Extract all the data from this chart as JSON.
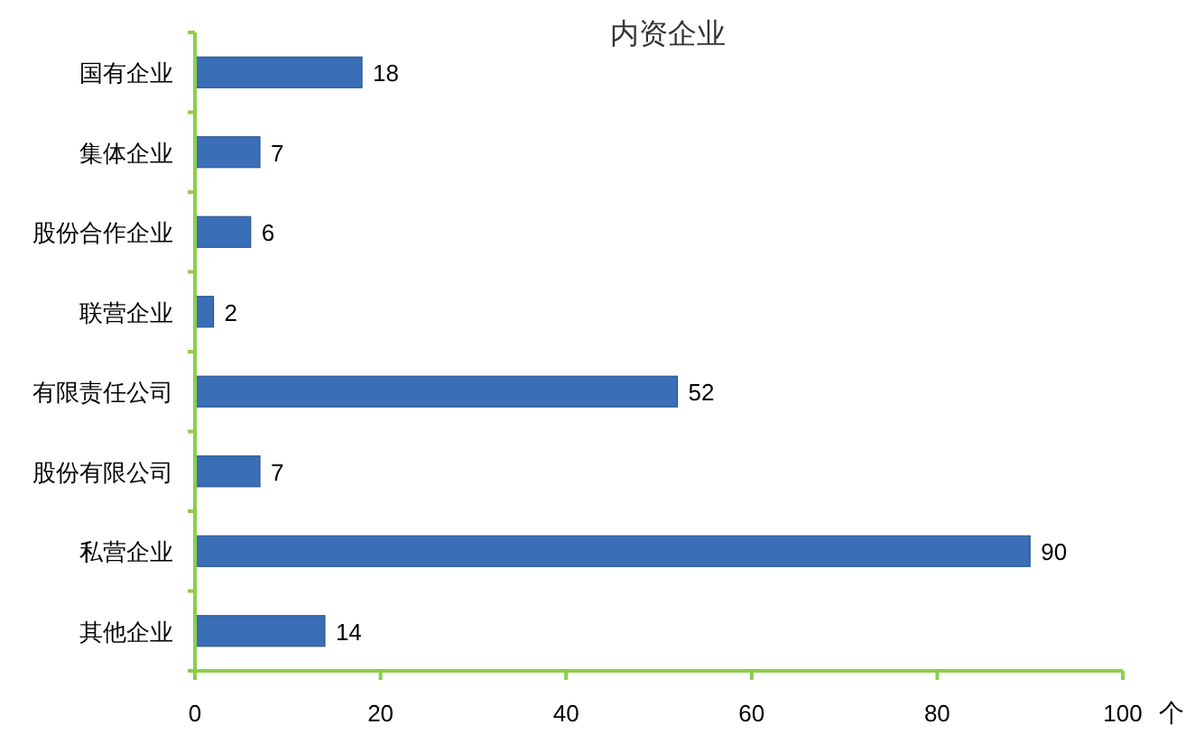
{
  "chart_data": {
    "type": "bar",
    "orientation": "horizontal",
    "title": "内资企业",
    "xlabel": "个",
    "categories": [
      "国有企业",
      "集体企业",
      "股份合作企业",
      "联营企业",
      "有限责任公司",
      "股份有限公司",
      "私营企业",
      "其他企业"
    ],
    "values": [
      18,
      7,
      6,
      2,
      52,
      7,
      90,
      14
    ],
    "color": "#3a6fb8",
    "xlim": [
      0,
      100
    ],
    "xticks": [
      0,
      20,
      40,
      60,
      80,
      100
    ],
    "data_labels": true,
    "grid": false
  }
}
